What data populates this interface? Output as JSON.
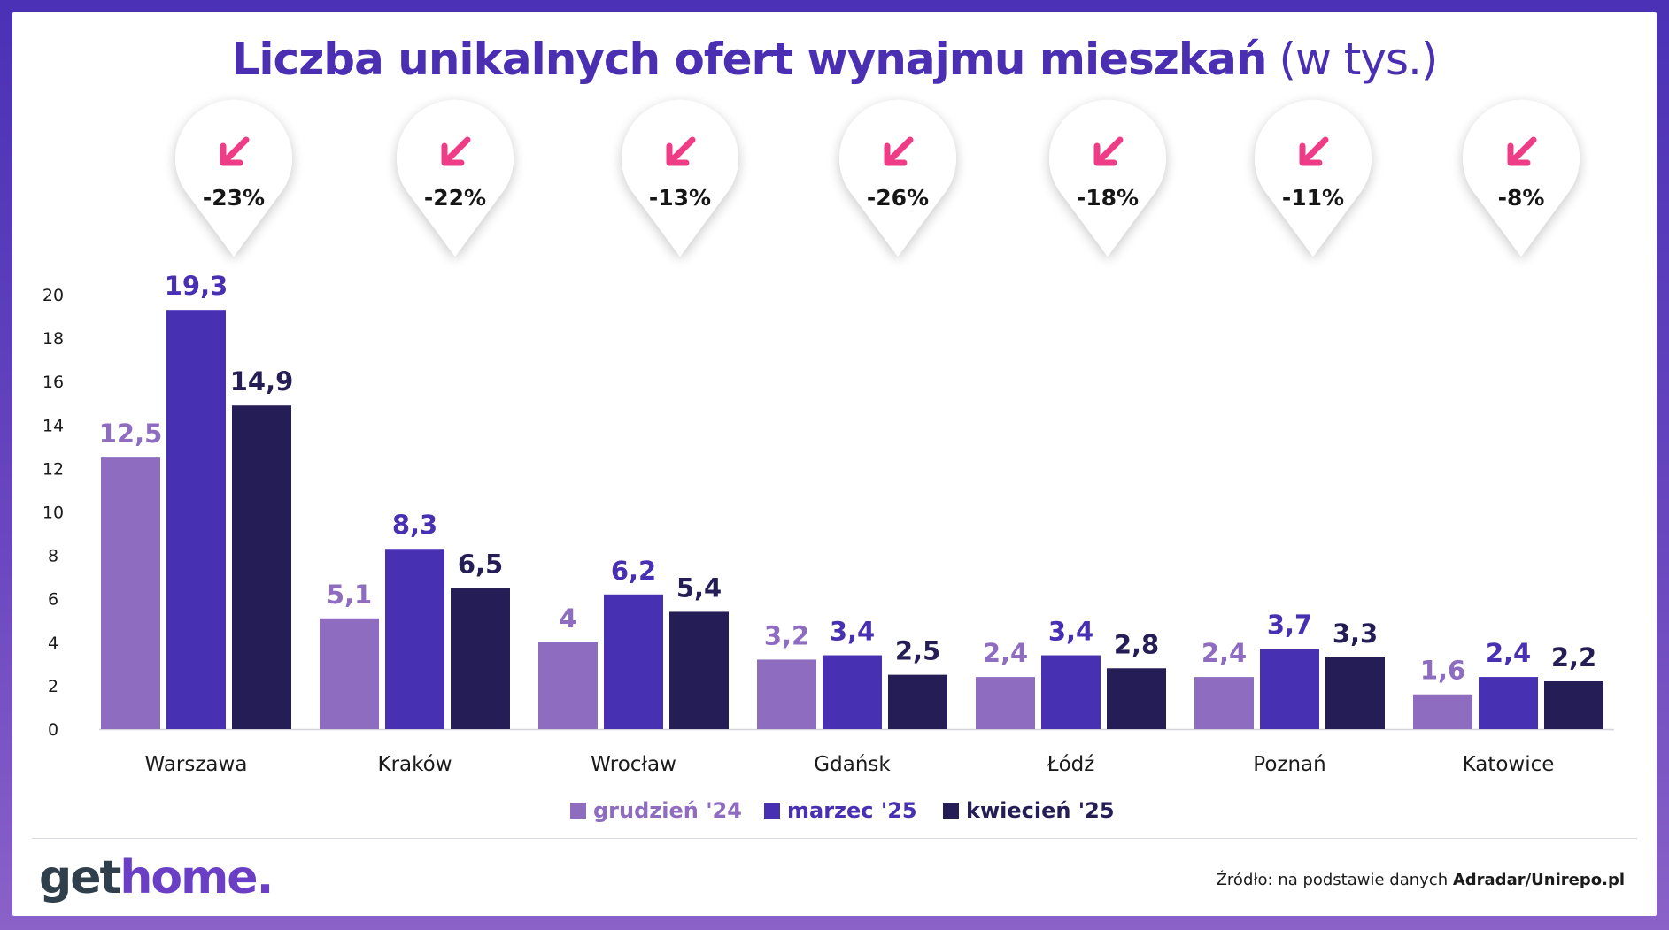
{
  "title": {
    "main": "Liczba unikalnych ofert wynajmu mieszkań",
    "unit": "(w tys.)"
  },
  "chart_data": {
    "type": "bar",
    "categories": [
      "Warszawa",
      "Kraków",
      "Wrocław",
      "Gdańsk",
      "Łódź",
      "Poznań",
      "Katowice"
    ],
    "series": [
      {
        "name": "grudzień '24",
        "color": "#8e6cc0",
        "values": [
          12.5,
          5.1,
          4,
          3.2,
          2.4,
          2.4,
          1.6
        ],
        "labels": [
          "12,5",
          "5,1",
          "4",
          "3,2",
          "2,4",
          "2,4",
          "1,6"
        ]
      },
      {
        "name": "marzec '25",
        "color": "#4830b3",
        "values": [
          19.3,
          8.3,
          6.2,
          3.4,
          3.4,
          3.7,
          2.4
        ],
        "labels": [
          "19,3",
          "8,3",
          "6,2",
          "3,4",
          "3,4",
          "3,7",
          "2,4"
        ]
      },
      {
        "name": "kwiecień '25",
        "color": "#251e56",
        "values": [
          14.9,
          6.5,
          5.4,
          2.5,
          2.8,
          3.3,
          2.2
        ],
        "labels": [
          "14,9",
          "6,5",
          "5,4",
          "2,5",
          "2,8",
          "3,3",
          "2,2"
        ]
      }
    ],
    "changes": [
      "-23%",
      "-22%",
      "-13%",
      "-26%",
      "-18%",
      "-11%",
      "-8%"
    ],
    "yticks": [
      "0",
      "2",
      "4",
      "6",
      "8",
      "10",
      "12",
      "14",
      "16",
      "18",
      "20"
    ],
    "ylim": [
      0,
      20
    ],
    "grid": false,
    "legend": "bottom"
  },
  "colors": {
    "title": "#4a2fb3",
    "arrow": "#ee3d86",
    "axis_text": "#1b1b1b"
  },
  "footer": {
    "logo_get": "get",
    "logo_home": "home",
    "logo_dot": ".",
    "source_prefix": "Źródło: na podstawie danych ",
    "source_bold": "Adradar/Unirepo.pl"
  }
}
